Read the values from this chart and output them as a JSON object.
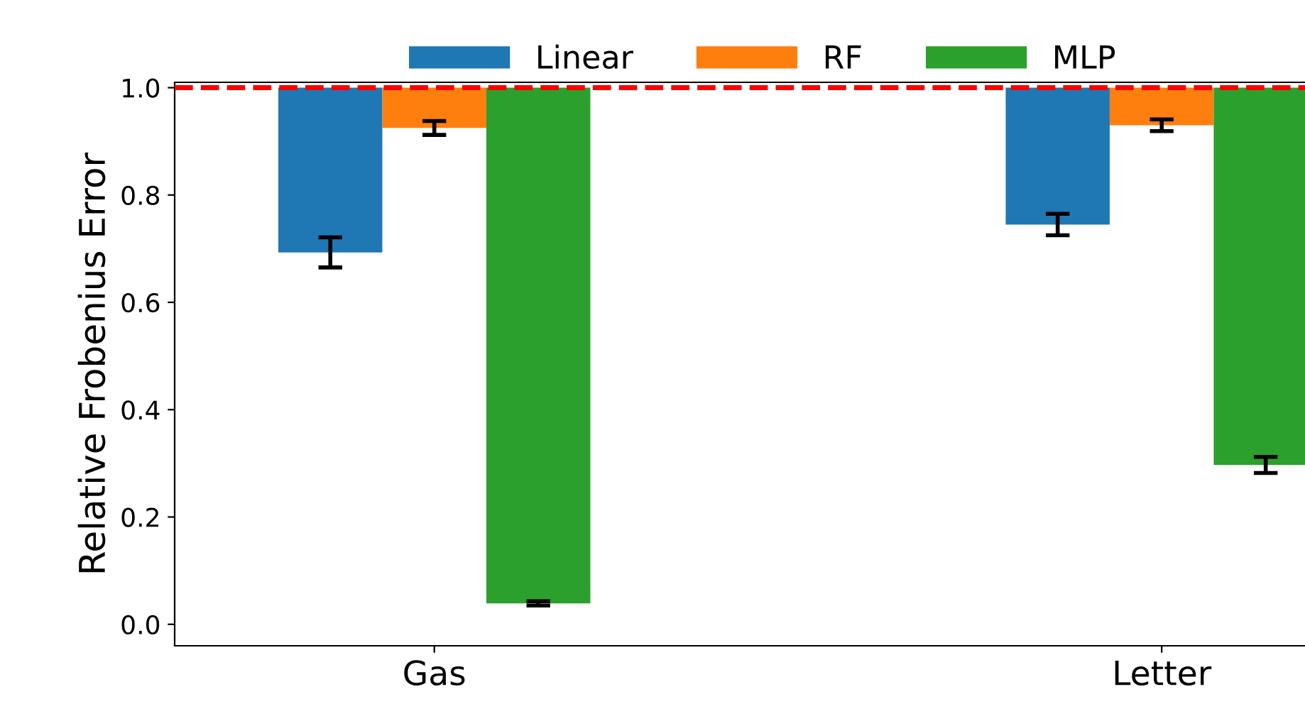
{
  "chart_data": {
    "type": "bar",
    "ylabel": "Relative Frobenius Error",
    "categories": [
      "Gas",
      "Letter"
    ],
    "series": [
      {
        "name": "Linear",
        "color": "#1f77b4",
        "base": [
          1,
          1
        ],
        "values": [
          -0.307,
          -0.255
        ],
        "errors": [
          0.028,
          0.02
        ]
      },
      {
        "name": "RF",
        "color": "#ff7f0e",
        "base": [
          1,
          1
        ],
        "values": [
          -0.075,
          -0.07
        ],
        "errors": [
          0.013,
          0.011
        ]
      },
      {
        "name": "MLP",
        "color": "#2ca02c",
        "base": [
          1,
          1
        ],
        "values": [
          -0.961,
          -0.703
        ],
        "errors": [
          0.004,
          0.015
        ]
      }
    ],
    "ylim": [
      -0.04,
      1.01
    ],
    "yticks": [
      {
        "value": 0,
        "label": "0.0"
      },
      0.2,
      0.4,
      0.6,
      0.8,
      {
        "value": 1,
        "label": "1.0"
      }
    ],
    "ref_lines": [
      {
        "axis": "y",
        "value": 1.0,
        "color": "#ff0000",
        "line_style": "dashed"
      }
    ],
    "legend": "top",
    "grid": false
  }
}
